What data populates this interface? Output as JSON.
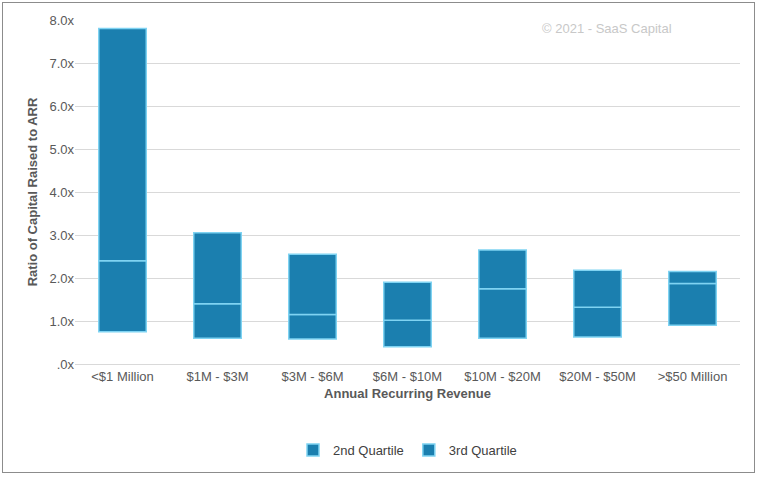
{
  "chart_data": {
    "type": "bar",
    "stacked": true,
    "categories": [
      "<$1 Million",
      "$1M - $3M",
      "$3M - $6M",
      "$6M - $10M",
      "$10M - $20M",
      "$20M - $50M",
      ">$50 Million"
    ],
    "base": [
      0.75,
      0.6,
      0.58,
      0.4,
      0.6,
      0.63,
      0.9
    ],
    "series": [
      {
        "name": "2nd Quartile",
        "color": "#1b7faf",
        "values": [
          1.65,
          0.8,
          0.57,
          0.62,
          1.15,
          0.69,
          0.97
        ]
      },
      {
        "name": "3rd Quartile",
        "color": "#1b7faf",
        "values": [
          5.4,
          1.65,
          1.4,
          0.88,
          0.9,
          0.86,
          0.28
        ]
      }
    ],
    "x_label": "Annual Recurring Revenue",
    "y_label": "Ratio of Capital Raised to ARR",
    "annotations": [
      "© 2021 - SaaS Capital"
    ],
    "ylim": [
      0,
      8
    ],
    "yticks": [
      {
        "value": 0,
        "label": ".0x"
      },
      {
        "value": 1,
        "label": "1.0x"
      },
      {
        "value": 2,
        "label": "2.0x"
      },
      {
        "value": 3,
        "label": "3.0x"
      },
      {
        "value": 4,
        "label": "4.0x"
      },
      {
        "value": 5,
        "label": "5.0x"
      },
      {
        "value": 6,
        "label": "6.0x"
      },
      {
        "value": 7,
        "label": "7.0x"
      },
      {
        "value": 8,
        "label": "8.0x"
      }
    ],
    "grid": true,
    "legend": "bottom"
  }
}
